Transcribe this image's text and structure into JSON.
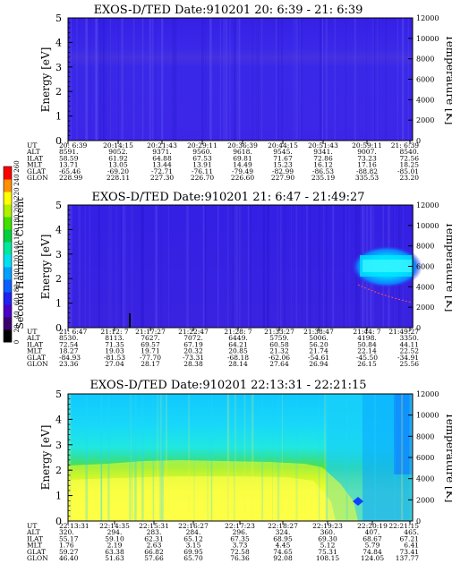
{
  "colorbar": {
    "label": "Second Harmonic Current",
    "ticks": [
      "0",
      "20",
      "40",
      "60",
      "80",
      "100",
      "120",
      "140",
      "160",
      "180",
      "200",
      "220",
      "240",
      "260"
    ],
    "colors": [
      "#000000",
      "#3a0070",
      "#4a00c8",
      "#2020f0",
      "#0a60ff",
      "#00a0ff",
      "#00e0f0",
      "#00e8a0",
      "#00d040",
      "#40e000",
      "#b0f000",
      "#ffff00",
      "#ff9000",
      "#ff0000"
    ]
  },
  "chart_data": [
    {
      "type": "heatmap",
      "title": "EXOS-D/TED   Date:910201  20: 6:39 - 21: 6:39",
      "ylabel": "Energy [eV]",
      "ylabel_right": "Temperature [K]",
      "ylim": [
        0,
        5
      ],
      "ylim_right": [
        0,
        12000
      ],
      "yticks": [
        "0",
        "1",
        "2",
        "3",
        "4",
        "5"
      ],
      "yticks_right": [
        "0",
        "2000",
        "4000",
        "6000",
        "8000",
        "10000",
        "12000"
      ],
      "dominant_level": 20,
      "features": "uniform low level (~10-40) with faint vertical streaks",
      "orbit_table": {
        "labels": [
          "UT",
          "ALT",
          "ILAT",
          "MLT",
          "GLAT",
          "GLON"
        ],
        "columns": [
          [
            "20: 6:39",
            "8591.",
            "58.59",
            "13.71",
            "-65.46",
            "228.99"
          ],
          [
            "20:14:15",
            "9052.",
            "61.92",
            "13.05",
            "-69.20",
            "228.11"
          ],
          [
            "20:21:43",
            "9371.",
            "64.88",
            "13.44",
            "-72.71",
            "227.30"
          ],
          [
            "20:29:11",
            "9560.",
            "67.53",
            "13.91",
            "-76.11",
            "226.70"
          ],
          [
            "20:36:39",
            "9618.",
            "69.81",
            "14.49",
            "-79.49",
            "226.60"
          ],
          [
            "20:44:15",
            "9545.",
            "71.67",
            "15.23",
            "-82.99",
            "227.90"
          ],
          [
            "20:51:43",
            "9341.",
            "72.86",
            "16.12",
            "-86.53",
            "235.19"
          ],
          [
            "20:59:11",
            "9007.",
            "73.23",
            "17.16",
            "-88.82",
            "335.53"
          ],
          [
            "21: 6:39",
            "8540.",
            "72.56",
            "18.25",
            "-85.01",
            "23.20"
          ]
        ]
      }
    },
    {
      "type": "heatmap",
      "title": "EXOS-D/TED   Date:910201  21: 6:47 - 21:49:27",
      "ylabel": "Energy [eV]",
      "ylabel_right": "Temperature [K]",
      "ylim": [
        0,
        5
      ],
      "ylim_right": [
        0,
        12000
      ],
      "yticks": [
        "0",
        "1",
        "2",
        "3",
        "4",
        "5"
      ],
      "yticks_right": [
        "0",
        "2000",
        "4000",
        "6000",
        "8000",
        "10000",
        "12000"
      ],
      "dominant_level": 20,
      "features": "enhancement (~100-140) near 2.5-4.5 eV after 21:42",
      "orbit_table": {
        "labels": [
          "UT",
          "ALT",
          "ILAT",
          "MLT",
          "GLAT",
          "GLON"
        ],
        "columns": [
          [
            "21: 6:47",
            "8530.",
            "72.54",
            "18.27",
            "-84.93",
            "23.36"
          ],
          [
            "21:12: 7",
            "8113.",
            "71.35",
            "19.03",
            "-81.53",
            "27.04"
          ],
          [
            "21:17:27",
            "7627.",
            "69.57",
            "19.71",
            "-77.70",
            "28.17"
          ],
          [
            "21:22:47",
            "7072.",
            "67.19",
            "20.32",
            "-73.31",
            "28.38"
          ],
          [
            "21:28: 7",
            "6449.",
            "64.21",
            "20.85",
            "-68.18",
            "28.14"
          ],
          [
            "21:33:27",
            "5759.",
            "60.58",
            "21.32",
            "-62.06",
            "27.64"
          ],
          [
            "21:38:47",
            "5006.",
            "56.20",
            "21.74",
            "-54.61",
            "26.94"
          ],
          [
            "21:44: 7",
            "4198.",
            "50.84",
            "22.14",
            "-45.50",
            "26.15"
          ],
          [
            "21:49:27",
            "3350.",
            "44.11",
            "22.52",
            "-34.91",
            "25.56"
          ]
        ]
      }
    },
    {
      "type": "heatmap",
      "title": "EXOS-D/TED   Date:910201  22:13:31 - 22:21:15",
      "ylabel": "Energy [eV]",
      "ylabel_right": "Temperature [K]",
      "ylim": [
        0,
        5
      ],
      "ylim_right": [
        0,
        12000
      ],
      "yticks": [
        "0",
        "1",
        "2",
        "3",
        "4",
        "5"
      ],
      "yticks_right": [
        "0",
        "2000",
        "4000",
        "6000",
        "8000",
        "10000",
        "12000"
      ],
      "dominant_level": 140,
      "features": "strong enhancement: yellow (~220) below 2 eV, green (~160-180) 2-3 eV, cyan above; drops after 22:18",
      "orbit_table": {
        "labels": [
          "UT",
          "ALT",
          "ILAT",
          "MLT",
          "GLAT",
          "GLON"
        ],
        "columns": [
          [
            "22:13:31",
            "320.",
            "55.17",
            "1.76",
            "59.27",
            "46.40"
          ],
          [
            "22:14:35",
            "294.",
            "59.10",
            "2.19",
            "63.38",
            "51.63"
          ],
          [
            "22:15:31",
            "283.",
            "62.31",
            "2.63",
            "66.82",
            "57.66"
          ],
          [
            "22:16:27",
            "284.",
            "65.12",
            "3.15",
            "69.95",
            "65.70"
          ],
          [
            "22:17:23",
            "296.",
            "67.35",
            "3.73",
            "72.58",
            "76.36"
          ],
          [
            "22:18:27",
            "324.",
            "68.95",
            "4.45",
            "74.65",
            "92.08"
          ],
          [
            "22:19:23",
            "360.",
            "69.30",
            "5.12",
            "75.31",
            "108.15"
          ],
          [
            "22:20:19",
            "407.",
            "68.67",
            "5.79",
            "74.84",
            "124.05"
          ],
          [
            "22:21:15",
            "465.",
            "67.21",
            "6.41",
            "73.41",
            "137.77"
          ]
        ]
      }
    }
  ]
}
